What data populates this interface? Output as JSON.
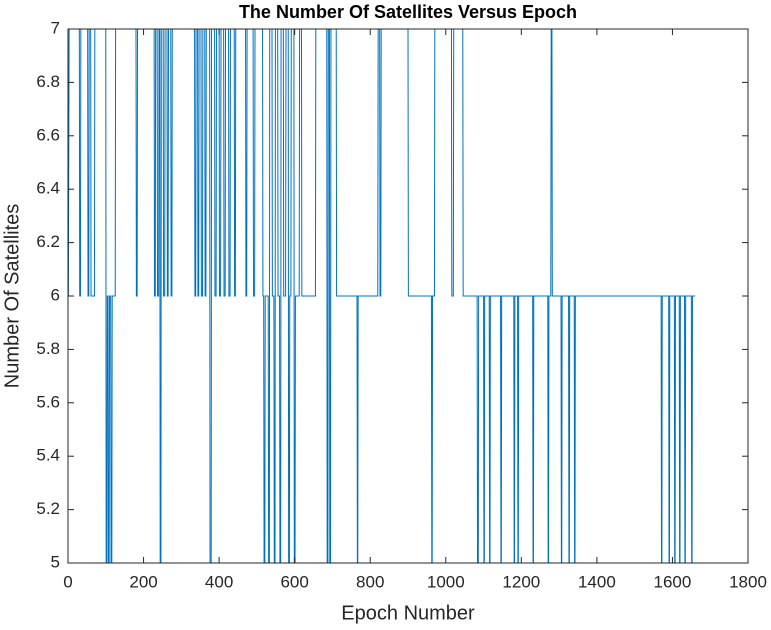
{
  "chart_data": {
    "type": "line",
    "title": "The Number Of Satellites Versus Epoch",
    "x_label": "Epoch Number",
    "y_label": "Number Of Satellites",
    "color": "#0072bd",
    "x": [
      1,
      3,
      30,
      31,
      33,
      34,
      52,
      53,
      55,
      56,
      60,
      61,
      70,
      71,
      100,
      101,
      103,
      104,
      106,
      107,
      109,
      110,
      113,
      114,
      116,
      117,
      125,
      126,
      180,
      181,
      183,
      184,
      228,
      229,
      231,
      232,
      236,
      237,
      240,
      241,
      243,
      244,
      246,
      247,
      252,
      253,
      256,
      257,
      262,
      263,
      265,
      266,
      272,
      273,
      275,
      276,
      335,
      336,
      338,
      339,
      343,
      344,
      346,
      347,
      352,
      353,
      356,
      357,
      362,
      363,
      365,
      366,
      375,
      376,
      379,
      380,
      388,
      389,
      392,
      393,
      400,
      401,
      404,
      405,
      412,
      413,
      416,
      417,
      425,
      426,
      429,
      430,
      440,
      441,
      443,
      444,
      470,
      471,
      473,
      474,
      490,
      491,
      494,
      495,
      515,
      516,
      518,
      519,
      521,
      522,
      530,
      531,
      533,
      534,
      540,
      541,
      545,
      546,
      548,
      549,
      555,
      556,
      560,
      561,
      563,
      564,
      570,
      571,
      576,
      577,
      583,
      584,
      586,
      587,
      590,
      591,
      598,
      599,
      601,
      602,
      612,
      613,
      618,
      619,
      655,
      656,
      685,
      686,
      688,
      689,
      692,
      693,
      695,
      696,
      710,
      711,
      765,
      766,
      767,
      768,
      820,
      821,
      825,
      826,
      828,
      829,
      900,
      901,
      962,
      963,
      964,
      965,
      970,
      971,
      1015,
      1016,
      1020,
      1021,
      1045,
      1046,
      1083,
      1084,
      1086,
      1087,
      1100,
      1101,
      1102,
      1103,
      1115,
      1116,
      1117,
      1118,
      1145,
      1146,
      1147,
      1148,
      1180,
      1181,
      1182,
      1183,
      1190,
      1191,
      1192,
      1193,
      1230,
      1231,
      1232,
      1233,
      1270,
      1271,
      1272,
      1273,
      1278,
      1279,
      1281,
      1282,
      1305,
      1306,
      1307,
      1308,
      1325,
      1326,
      1327,
      1328,
      1340,
      1341,
      1342,
      1343,
      1570,
      1571,
      1572,
      1573,
      1590,
      1591,
      1592,
      1593,
      1605,
      1606,
      1607,
      1608,
      1618,
      1619,
      1620,
      1621,
      1632,
      1633,
      1634,
      1635,
      1650,
      1651,
      1652,
      1653,
      1660
    ],
    "values": [
      6,
      7,
      7,
      6,
      6,
      7,
      7,
      6,
      6,
      7,
      7,
      6,
      6,
      7,
      7,
      5,
      5,
      6,
      6,
      5,
      5,
      6,
      6,
      5,
      5,
      6,
      6,
      7,
      7,
      6,
      6,
      7,
      7,
      6,
      6,
      7,
      7,
      6,
      6,
      7,
      7,
      5,
      5,
      7,
      7,
      6,
      6,
      7,
      7,
      6,
      6,
      7,
      7,
      6,
      6,
      7,
      7,
      6,
      6,
      7,
      7,
      6,
      6,
      7,
      7,
      6,
      6,
      7,
      7,
      6,
      6,
      7,
      7,
      5,
      5,
      7,
      7,
      6,
      6,
      7,
      7,
      6,
      6,
      7,
      7,
      6,
      6,
      7,
      7,
      6,
      6,
      7,
      7,
      6,
      6,
      7,
      7,
      6,
      6,
      7,
      7,
      6,
      6,
      7,
      7,
      6,
      6,
      5,
      5,
      6,
      6,
      5,
      5,
      7,
      7,
      6,
      6,
      5,
      5,
      7,
      7,
      6,
      6,
      5,
      5,
      7,
      7,
      6,
      6,
      7,
      7,
      5,
      5,
      6,
      6,
      7,
      7,
      5,
      5,
      6,
      6,
      7,
      7,
      6,
      6,
      7,
      7,
      5,
      5,
      7,
      7,
      5,
      5,
      7,
      7,
      6,
      6,
      5,
      5,
      6,
      6,
      7,
      7,
      6,
      6,
      7,
      7,
      6,
      6,
      5,
      5,
      6,
      6,
      7,
      7,
      6,
      6,
      7,
      7,
      6,
      6,
      5,
      5,
      6,
      6,
      5,
      5,
      6,
      6,
      5,
      5,
      6,
      6,
      5,
      5,
      6,
      6,
      5,
      5,
      6,
      6,
      5,
      5,
      6,
      6,
      5,
      5,
      6,
      6,
      5,
      5,
      6,
      6,
      7,
      7,
      6,
      6,
      5,
      5,
      6,
      6,
      5,
      5,
      6,
      6,
      5,
      5,
      6,
      6,
      5,
      5,
      6,
      6,
      5,
      5,
      6,
      6,
      5,
      5,
      6,
      6,
      5,
      5,
      6,
      6,
      5,
      5,
      6,
      6,
      5,
      5,
      6,
      6
    ],
    "xlim": [
      0,
      1800
    ],
    "ylim": [
      5,
      7
    ],
    "xticks": [
      0,
      200,
      400,
      600,
      800,
      1000,
      1200,
      1400,
      1600,
      1800
    ],
    "yticks": [
      5,
      5.2,
      5.4,
      5.6,
      5.8,
      6,
      6.2,
      6.4,
      6.6,
      6.8,
      7
    ],
    "grid": false
  }
}
